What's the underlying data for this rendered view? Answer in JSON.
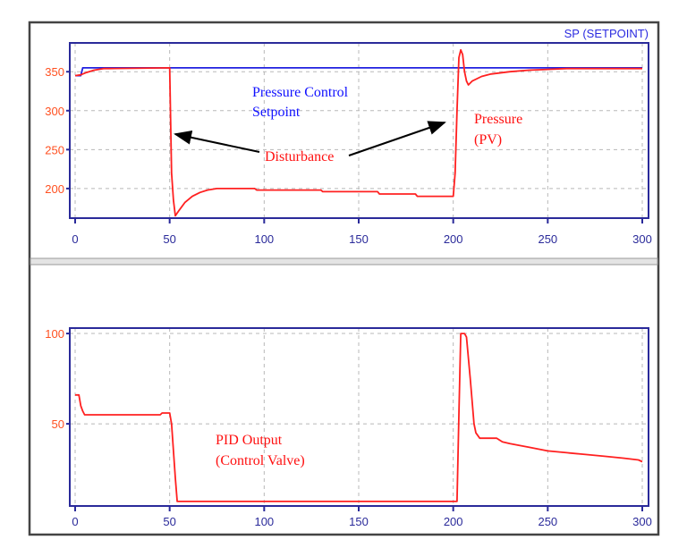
{
  "chart_data": [
    {
      "type": "line",
      "legend_label": "SP (SETPOINT)",
      "xlim": [
        0,
        300
      ],
      "ylim": [
        162,
        387
      ],
      "xticks": [
        0,
        50,
        100,
        150,
        200,
        250,
        300
      ],
      "yticks": [
        200,
        250,
        300,
        350
      ],
      "grid": true,
      "series": [
        {
          "key": "sp",
          "color": "#2020e0",
          "x": [
            0,
            3,
            4,
            300
          ],
          "y": [
            345,
            345,
            355,
            355
          ]
        },
        {
          "key": "pv",
          "color": "#ff2020",
          "x": [
            0,
            3,
            6,
            10,
            15,
            18,
            50,
            50.5,
            51,
            52,
            53,
            55,
            58,
            62,
            66,
            70,
            75,
            95,
            96,
            130,
            131,
            160,
            161,
            180,
            181,
            200,
            201,
            202,
            203,
            204,
            205,
            206,
            207,
            208,
            210,
            215,
            220,
            230,
            240,
            250,
            260,
            300
          ],
          "y": [
            345,
            346,
            349,
            352,
            354,
            354,
            355,
            290,
            220,
            185,
            165,
            172,
            182,
            190,
            195,
            198,
            200,
            200,
            198,
            198,
            196,
            196,
            193,
            193,
            190,
            190,
            220,
            300,
            368,
            378,
            372,
            350,
            338,
            333,
            338,
            344,
            347,
            350,
            352,
            353,
            354,
            354
          ]
        }
      ],
      "annotations": [
        {
          "text": "Pressure Control",
          "color": "#1010ff"
        },
        {
          "text": "Setpoint",
          "color": "#1010ff"
        },
        {
          "text": "Disturbance",
          "color": "#ff1010"
        },
        {
          "text": "Pressure",
          "color": "#ff1010"
        },
        {
          "text": "(PV)",
          "color": "#ff1010"
        }
      ]
    },
    {
      "type": "line",
      "xlim": [
        0,
        300
      ],
      "ylim": [
        4.5,
        103
      ],
      "xticks": [
        0,
        50,
        100,
        150,
        200,
        250,
        300
      ],
      "yticks": [
        50,
        100
      ],
      "grid": true,
      "series": [
        {
          "key": "out",
          "color": "#ff2020",
          "x": [
            0,
            2,
            3,
            4,
            5,
            45,
            46,
            50,
            51,
            52,
            53,
            54,
            202,
            203,
            204,
            206,
            207,
            209,
            211,
            212,
            214,
            223,
            226,
            230,
            235,
            240,
            250,
            260,
            270,
            280,
            290,
            298,
            300
          ],
          "y": [
            66,
            66,
            60,
            57,
            55,
            55,
            56,
            56,
            50,
            35,
            20,
            7,
            7,
            55,
            100,
            100,
            98,
            75,
            50,
            45,
            42,
            42,
            40,
            39,
            38,
            37,
            35,
            34,
            33,
            32,
            31,
            30,
            29
          ]
        }
      ],
      "annotations": [
        {
          "text": "PID Output",
          "color": "#ff1010"
        },
        {
          "text": "(Control Valve)",
          "color": "#ff1010"
        }
      ]
    }
  ],
  "colors": {
    "axis": "#2a2a9a",
    "ytick": "#ff5020",
    "xtick": "#2a2a9a",
    "grid": "#b8b8b8",
    "frame": "#444444"
  }
}
